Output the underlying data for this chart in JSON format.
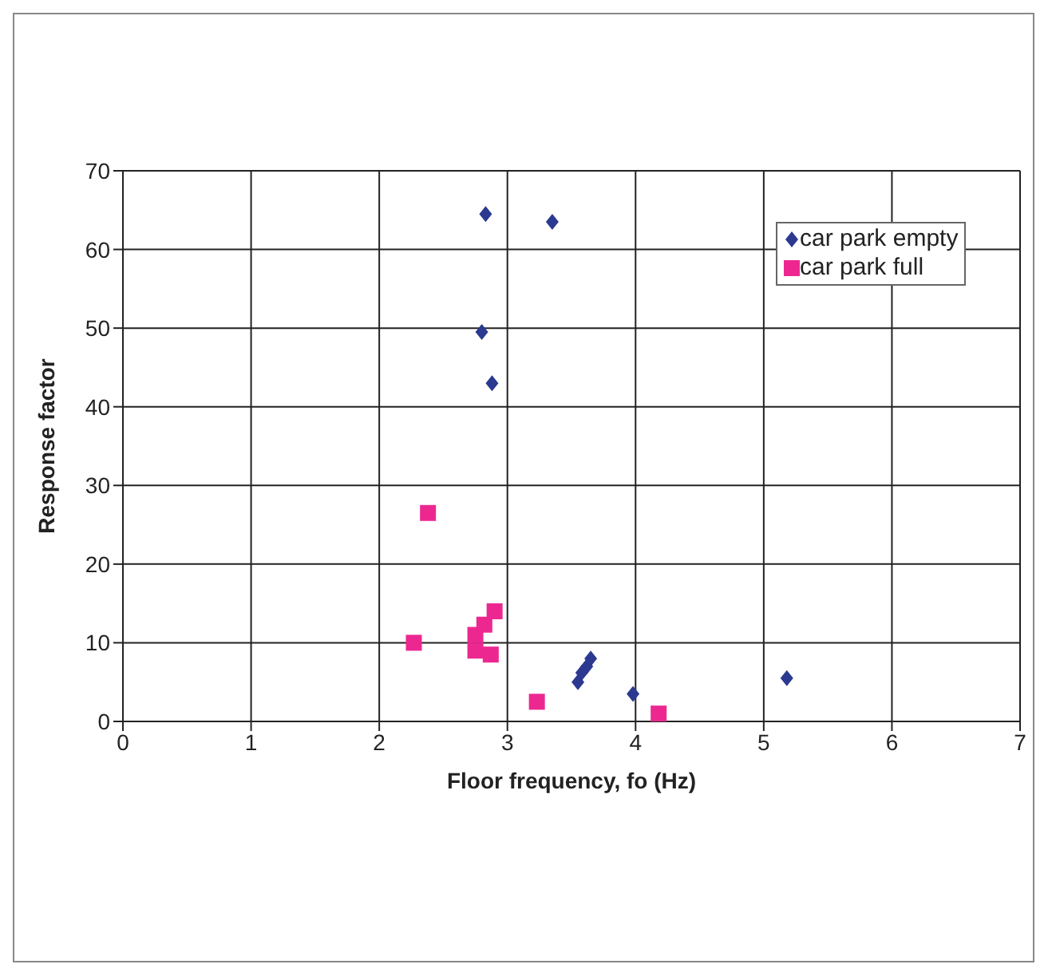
{
  "chart_data": {
    "type": "scatter",
    "xlabel": "Floor frequency, fo (Hz)",
    "ylabel": "Response factor",
    "xlim": [
      0,
      7
    ],
    "xticks": [
      0,
      1,
      2,
      3,
      4,
      5,
      6,
      7
    ],
    "ylim": [
      0,
      70
    ],
    "yticks": [
      0,
      10,
      20,
      30,
      40,
      50,
      60,
      70
    ],
    "grid": true,
    "legend": "top right",
    "series": [
      {
        "name": "car park empty",
        "color": "#2b3990",
        "marker": "diamond",
        "x": [
          2.83,
          3.35,
          2.8,
          2.88,
          3.55,
          3.58,
          3.62,
          3.65,
          3.98,
          5.18
        ],
        "values": [
          64.5,
          63.5,
          49.5,
          43,
          5,
          6.2,
          7,
          8,
          3.5,
          5.5
        ]
      },
      {
        "name": "car park full",
        "color": "#ec2890",
        "marker": "square",
        "x": [
          2.38,
          2.27,
          2.75,
          2.75,
          2.82,
          2.9,
          2.87,
          3.23,
          4.18
        ],
        "values": [
          26.5,
          10,
          11,
          9,
          12.3,
          14,
          8.5,
          2.5,
          1
        ]
      }
    ]
  }
}
